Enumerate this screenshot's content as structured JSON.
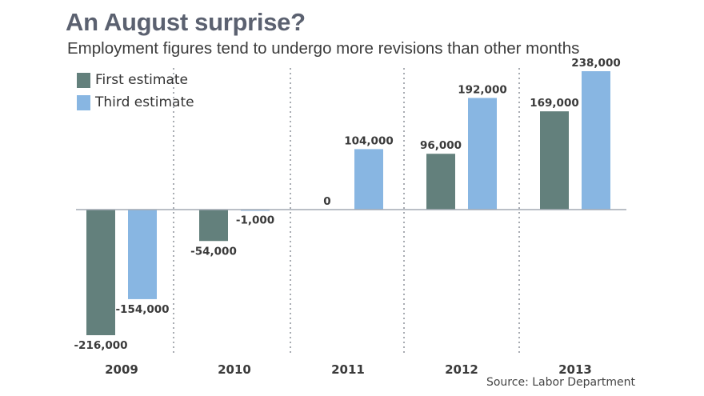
{
  "chart_data": {
    "type": "bar",
    "title": "An August surprise?",
    "subtitle": "Employment figures tend to undergo more revisions than other months",
    "categories": [
      "2009",
      "2010",
      "2011",
      "2012",
      "2013"
    ],
    "series": [
      {
        "name": "First estimate",
        "color": "#63807c",
        "values": [
          -216000,
          -54000,
          0,
          96000,
          169000
        ],
        "labels": [
          "-216,000",
          "-54,000",
          "0",
          "96,000",
          "169,000"
        ]
      },
      {
        "name": "Third estimate",
        "color": "#88b6e2",
        "values": [
          -154000,
          -1000,
          104000,
          192000,
          238000
        ],
        "labels": [
          "-154,000",
          "-1,000",
          "104,000",
          "192,000",
          "238,000"
        ]
      }
    ],
    "xlabel": "",
    "ylabel": "",
    "ylim": [
      -216000,
      238000
    ],
    "grid": false,
    "legend_position": "top-left",
    "source": "Source: Labor Department"
  }
}
